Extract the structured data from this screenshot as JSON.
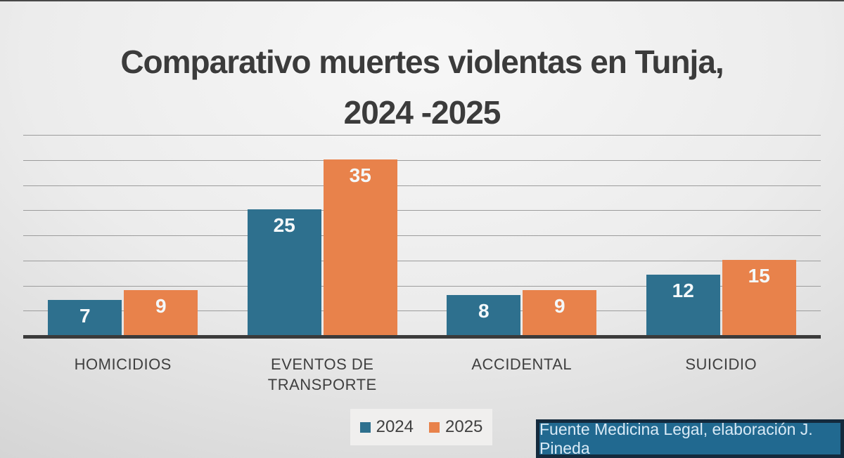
{
  "slide": {
    "title_line1": "Comparativo muertes violentas en Tunja,",
    "title_line2": "2024 -2025",
    "source_note": "Fuente Medicina Legal, elaboración J. Pineda"
  },
  "colors": {
    "series_2024": "#2e708e",
    "series_2025": "#e8824b",
    "title_text": "#3b3b3b",
    "gridline": "#9c9c9c",
    "axis_line": "#3b3b3b",
    "data_label_text": "#f4f8fa",
    "category_label_text": "#3f3f3f",
    "legend_background": "#f0efee",
    "source_background": "#216990",
    "source_border": "#142a3d",
    "source_text": "#d9eaf6"
  },
  "legend": {
    "items": [
      {
        "label": "2024",
        "color": "#2e708e"
      },
      {
        "label": "2025",
        "color": "#e8824b"
      }
    ]
  },
  "chart_data": {
    "type": "bar",
    "title": "Comparativo muertes violentas en Tunja, 2024 -2025",
    "categories": [
      "HOMICIDIOS",
      "EVENTOS DE TRANSPORTE",
      "ACCIDENTAL",
      "SUICIDIO"
    ],
    "series": [
      {
        "name": "2024",
        "color": "#2e708e",
        "values": [
          7,
          25,
          8,
          12
        ]
      },
      {
        "name": "2025",
        "color": "#e8824b",
        "values": [
          9,
          35,
          9,
          15
        ]
      }
    ],
    "xlabel": "",
    "ylabel": "",
    "ylim": [
      0,
      40
    ],
    "gridline_step": 5,
    "grid": true,
    "legend_position": "bottom",
    "data_labels": "inside-end",
    "source_note": "Fuente Medicina Legal, elaboración J. Pineda"
  }
}
